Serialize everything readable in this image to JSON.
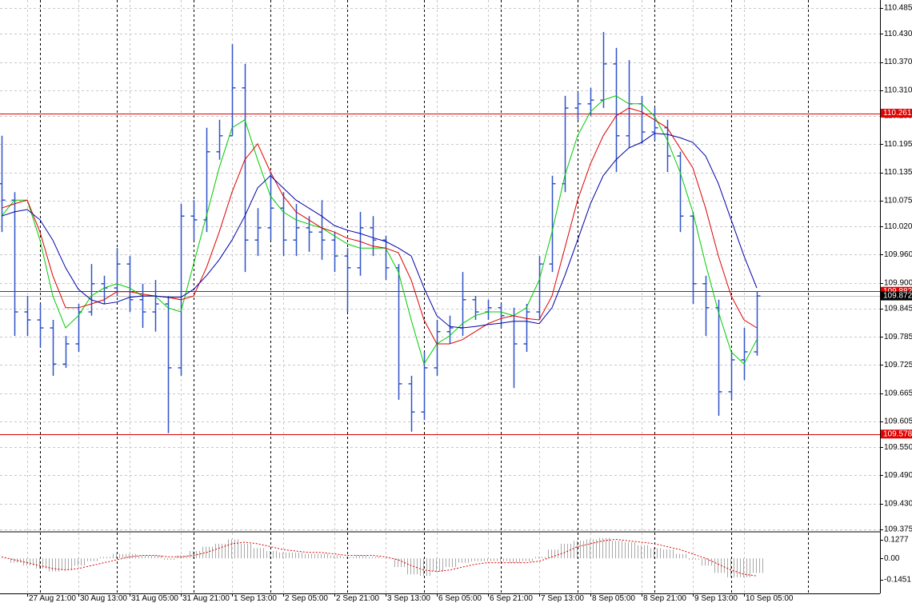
{
  "chart_data": [
    {
      "type": "ohlc",
      "bar_color": "#2f52c8",
      "grid": true,
      "categories": [
        null,
        null,
        "27 Aug 21:00",
        null,
        null,
        null,
        "30 Aug 13:00",
        null,
        null,
        null,
        "31 Aug 05:00",
        null,
        null,
        null,
        "31 Aug 21:00",
        null,
        null,
        null,
        "1 Sep 13:00",
        null,
        null,
        null,
        "2 Sep 05:00",
        null,
        null,
        null,
        "2 Sep 21:00",
        null,
        null,
        null,
        "3 Sep 13:00",
        null,
        null,
        null,
        "6 Sep 05:00",
        null,
        null,
        null,
        "6 Sep 21:00",
        null,
        null,
        null,
        "7 Sep 13:00",
        null,
        null,
        null,
        "8 Sep 05:00",
        null,
        null,
        null,
        "8 Sep 21:00",
        null,
        null,
        null,
        "9 Sep 13:00",
        null,
        null,
        null,
        "10 Sep 05:00",
        null
      ],
      "open": [
        110.111,
        110.076,
        109.838,
        109.821,
        109.804,
        109.727,
        109.77,
        109.838,
        109.898,
        109.889,
        109.94,
        109.864,
        109.838,
        109.855,
        109.719,
        110.042,
        110.034,
        110.179,
        110.213,
        110.315,
        109.991,
        110.017,
        110.059,
        109.991,
        110.017,
        110.008,
        109.991,
        109.957,
        109.932,
        110.017,
        109.991,
        109.932,
        109.685,
        109.625,
        109.719,
        109.796,
        109.804,
        109.864,
        109.838,
        109.847,
        109.83,
        109.77,
        109.838,
        109.94,
        110.111,
        110.272,
        110.281,
        110.289,
        110.366,
        110.213,
        110.281,
        110.221,
        110.23,
        110.17,
        110.042,
        109.898,
        109.847,
        109.668,
        109.736,
        109.753
      ],
      "high": [
        110.213,
        110.093,
        109.872,
        109.855,
        109.821,
        109.787,
        109.855,
        109.94,
        109.915,
        109.974,
        109.957,
        109.898,
        109.906,
        109.872,
        110.068,
        110.076,
        110.23,
        110.247,
        110.408,
        110.366,
        110.059,
        110.136,
        110.093,
        110.068,
        110.042,
        110.076,
        110.008,
        109.974,
        110.051,
        110.042,
        110.0,
        109.94,
        109.702,
        109.753,
        109.821,
        109.83,
        109.923,
        109.872,
        109.864,
        109.855,
        109.847,
        109.855,
        109.957,
        110.128,
        110.298,
        110.306,
        110.315,
        110.434,
        110.4,
        110.374,
        110.298,
        110.272,
        110.247,
        110.179,
        110.051,
        109.915,
        109.864,
        109.753,
        109.804,
        109.881
      ],
      "low": [
        110.008,
        109.787,
        109.787,
        109.762,
        109.702,
        109.719,
        109.753,
        109.83,
        109.855,
        109.872,
        109.838,
        109.804,
        109.796,
        109.58,
        109.702,
        109.991,
        110.008,
        110.162,
        110.213,
        109.923,
        109.957,
        109.991,
        109.957,
        109.957,
        109.966,
        109.949,
        109.923,
        109.838,
        109.915,
        109.957,
        109.906,
        109.651,
        109.583,
        109.608,
        109.702,
        109.77,
        109.787,
        109.821,
        109.821,
        109.804,
        109.676,
        109.753,
        109.821,
        109.923,
        110.093,
        110.247,
        110.255,
        110.272,
        110.136,
        110.187,
        110.196,
        110.204,
        110.136,
        110.008,
        109.855,
        109.787,
        109.617,
        109.651,
        109.693,
        109.745
      ],
      "close": [
        110.076,
        109.838,
        109.821,
        109.804,
        109.727,
        109.77,
        109.838,
        109.898,
        109.889,
        109.94,
        109.864,
        109.838,
        109.855,
        109.719,
        110.042,
        110.034,
        110.179,
        110.213,
        110.315,
        109.991,
        110.017,
        110.059,
        109.991,
        110.017,
        110.008,
        109.991,
        109.957,
        109.932,
        110.017,
        109.991,
        109.932,
        109.685,
        109.625,
        109.719,
        109.796,
        109.804,
        109.864,
        109.838,
        109.847,
        109.83,
        109.77,
        109.838,
        109.94,
        110.111,
        110.272,
        110.281,
        110.289,
        110.366,
        110.213,
        110.281,
        110.221,
        110.23,
        110.17,
        110.042,
        109.898,
        109.847,
        109.668,
        109.736,
        109.753,
        109.872
      ],
      "series": [
        {
          "color": "#00cc00",
          "values": [
            110.042,
            110.076,
            110.076,
            109.991,
            109.872,
            109.804,
            109.83,
            109.872,
            109.889,
            109.898,
            109.889,
            109.872,
            109.872,
            109.847,
            109.838,
            109.94,
            110.042,
            110.145,
            110.23,
            110.247,
            110.162,
            110.085,
            110.051,
            110.034,
            110.025,
            110.017,
            110.0,
            109.983,
            109.974,
            109.974,
            109.974,
            109.923,
            109.821,
            109.727,
            109.77,
            109.787,
            109.813,
            109.83,
            109.838,
            109.838,
            109.83,
            109.847,
            109.906,
            110.008,
            110.128,
            110.213,
            110.264,
            110.289,
            110.298,
            110.281,
            110.281,
            110.255,
            110.204,
            110.136,
            110.051,
            109.94,
            109.838,
            109.753,
            109.727,
            109.779
          ]
        },
        {
          "color": "#dd0000",
          "values": [
            110.059,
            110.068,
            110.076,
            110.008,
            109.915,
            109.847,
            109.847,
            109.855,
            109.864,
            109.881,
            109.881,
            109.876,
            109.872,
            109.869,
            109.864,
            109.872,
            109.932,
            110.008,
            110.093,
            110.162,
            110.196,
            110.136,
            110.085,
            110.051,
            110.034,
            110.017,
            110.008,
            109.995,
            109.988,
            109.978,
            109.974,
            109.964,
            109.906,
            109.821,
            109.77,
            109.77,
            109.779,
            109.796,
            109.813,
            109.824,
            109.83,
            109.824,
            109.821,
            109.872,
            109.974,
            110.076,
            110.153,
            110.213,
            110.255,
            110.272,
            110.264,
            110.247,
            110.23,
            110.187,
            110.145,
            110.059,
            109.957,
            109.872,
            109.821,
            109.804
          ]
        },
        {
          "color": "#0000aa",
          "values": [
            110.042,
            110.051,
            110.056,
            110.034,
            109.991,
            109.932,
            109.886,
            109.864,
            109.855,
            109.859,
            109.869,
            109.872,
            109.872,
            109.869,
            109.869,
            109.886,
            109.915,
            109.949,
            109.991,
            110.042,
            110.102,
            110.128,
            110.102,
            110.076,
            110.059,
            110.042,
            110.022,
            110.012,
            110.005,
            109.996,
            109.988,
            109.974,
            109.957,
            109.889,
            109.83,
            109.807,
            109.804,
            109.807,
            109.811,
            109.814,
            109.818,
            109.818,
            109.813,
            109.847,
            109.915,
            109.991,
            110.068,
            110.128,
            110.162,
            110.187,
            110.199,
            110.218,
            110.216,
            110.209,
            110.199,
            110.17,
            110.111,
            110.034,
            109.957,
            109.889
          ]
        }
      ],
      "levels": [
        {
          "value": 110.261,
          "color": "#e00000",
          "line_color": "#e00000"
        },
        {
          "value": 109.882,
          "color": "#e00000",
          "line_color": "#e00000"
        },
        {
          "value": 109.872,
          "color": "#000000",
          "line_color": "#c0c0c0"
        },
        {
          "value": 109.578,
          "color": "#e00000",
          "line_color": "#e00000"
        }
      ],
      "ylim": [
        109.375,
        110.485
      ],
      "yticks": [
        110.485,
        {
          "value": 110.43,
          "label": "110.430"
        },
        {
          "value": 110.37,
          "label": "110.370"
        },
        {
          "value": 110.31,
          "label": "110.310"
        },
        110.255,
        110.195,
        110.135,
        110.075,
        {
          "value": 110.02,
          "label": "110.020"
        },
        {
          "value": 109.96,
          "label": "109.960"
        },
        {
          "value": 109.9,
          "label": "109.900"
        },
        109.845,
        109.785,
        109.725,
        109.665,
        109.605,
        {
          "value": 109.55,
          "label": "109.550"
        },
        {
          "value": 109.49,
          "label": "109.490"
        },
        {
          "value": 109.43,
          "label": "109.430"
        },
        109.375
      ]
    },
    {
      "type": "macd",
      "color": "#b0b0b0",
      "signal_color": "#dd0000",
      "values": [
        0.0,
        -0.03,
        -0.05,
        -0.07,
        -0.09,
        -0.08,
        -0.05,
        -0.02,
        0.01,
        0.03,
        0.03,
        0.02,
        0.02,
        -0.01,
        0.02,
        0.05,
        0.08,
        0.1,
        0.13,
        0.1,
        0.07,
        0.05,
        0.04,
        0.04,
        0.03,
        0.03,
        0.02,
        0.01,
        0.02,
        0.01,
        0.0,
        -0.06,
        -0.11,
        -0.12,
        -0.09,
        -0.06,
        -0.03,
        -0.02,
        -0.02,
        -0.02,
        -0.03,
        -0.02,
        0.01,
        0.06,
        0.1,
        0.12,
        0.13,
        0.14,
        0.12,
        0.11,
        0.09,
        0.07,
        0.06,
        0.03,
        -0.01,
        -0.05,
        -0.1,
        -0.13,
        -0.13,
        -0.1
      ],
      "signal": [
        0.01,
        -0.01,
        -0.03,
        -0.05,
        -0.07,
        -0.08,
        -0.07,
        -0.05,
        -0.03,
        -0.01,
        0.01,
        0.02,
        0.02,
        0.01,
        0.01,
        0.02,
        0.04,
        0.07,
        0.1,
        0.11,
        0.1,
        0.08,
        0.06,
        0.05,
        0.04,
        0.04,
        0.03,
        0.02,
        0.02,
        0.02,
        0.01,
        -0.01,
        -0.05,
        -0.08,
        -0.09,
        -0.08,
        -0.06,
        -0.04,
        -0.03,
        -0.03,
        -0.03,
        -0.03,
        -0.02,
        0.01,
        0.04,
        0.08,
        0.1,
        0.12,
        0.13,
        0.12,
        0.11,
        0.1,
        0.08,
        0.06,
        0.03,
        0.0,
        -0.04,
        -0.08,
        -0.11,
        -0.12
      ],
      "ylim": [
        -0.24,
        0.165
      ],
      "yticks": [
        0.1277,
        {
          "value": 0,
          "label": "0.00"
        },
        -0.1451
      ]
    }
  ]
}
